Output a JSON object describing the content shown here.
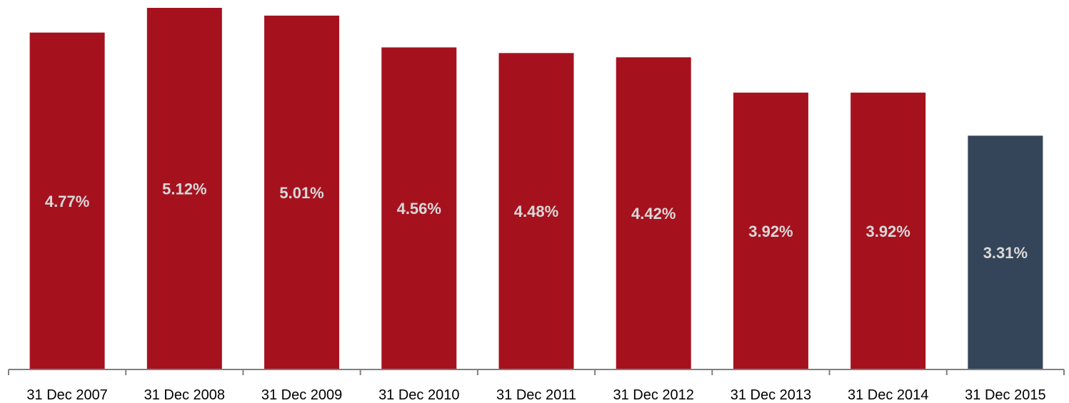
{
  "chart_data": {
    "type": "bar",
    "categories": [
      "31 Dec 2007",
      "31 Dec 2008",
      "31 Dec 2009",
      "31 Dec 2010",
      "31 Dec 2011",
      "31 Dec 2012",
      "31 Dec 2013",
      "31 Dec 2014",
      "31 Dec 2015"
    ],
    "values": [
      4.77,
      5.12,
      5.01,
      4.56,
      4.48,
      4.42,
      3.92,
      3.92,
      3.31
    ],
    "value_labels": [
      "4.77%",
      "5.12%",
      "5.01%",
      "4.56%",
      "4.48%",
      "4.42%",
      "3.92%",
      "3.92%",
      "3.31%"
    ],
    "ylim": [
      0,
      5.12
    ],
    "grid": false,
    "legend": "none",
    "colors": {
      "bar": "#a5121e",
      "highlight_bar": "#344559",
      "label": "#d9d9d9",
      "axis": "#808080",
      "tick_text": "#000000"
    },
    "highlight_index": 8
  }
}
